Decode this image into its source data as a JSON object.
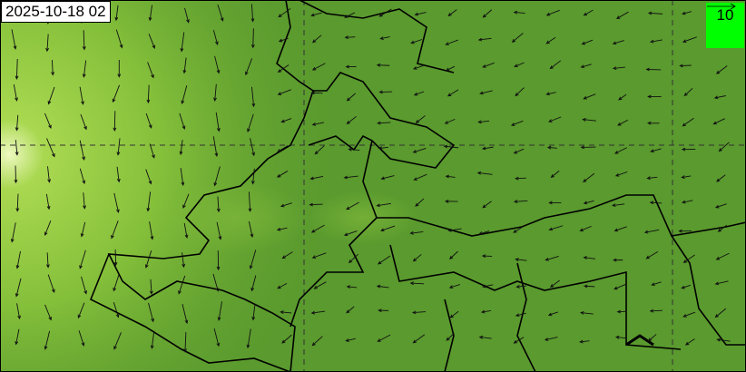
{
  "map": {
    "timestamp": "2025-10-18 02",
    "legend": {
      "reference_speed": "10",
      "color": "#00ff00"
    },
    "field_colors": {
      "base": "#5a9a2e",
      "light": "#8cc63c",
      "peak": "#e8f7b0"
    },
    "grid_style": "dashed",
    "wind_direction_dominant": "north-easterly (arrows pointing south-west / south)"
  }
}
